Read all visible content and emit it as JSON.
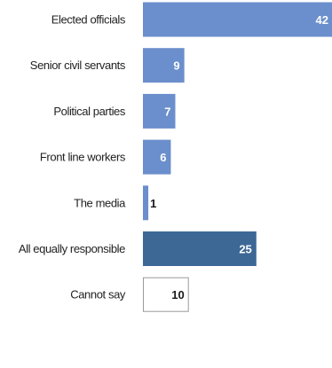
{
  "chart_data": {
    "type": "bar",
    "orientation": "horizontal",
    "title": "",
    "xlabel": "",
    "ylabel": "",
    "categories": [
      "Elected officials",
      "Senior civil servants",
      "Political parties",
      "Front line workers",
      "The media",
      "All equally responsible",
      "Cannot say"
    ],
    "values": [
      42,
      9,
      7,
      6,
      1,
      25,
      10
    ],
    "bar_colors": [
      "#6b8fcc",
      "#6b8fcc",
      "#6b8fcc",
      "#6b8fcc",
      "#6b8fcc",
      "#3d6896",
      "#ffffff"
    ],
    "bar_outline_colors": [
      "#6b8fcc",
      "#6b8fcc",
      "#6b8fcc",
      "#6b8fcc",
      "#6b8fcc",
      "#3d6896",
      "#9a9a9a"
    ],
    "value_label_colors": [
      "#ffffff",
      "#ffffff",
      "#ffffff",
      "#ffffff",
      "#1a1a1a",
      "#ffffff",
      "#1a1a1a"
    ],
    "xlim": [
      0,
      42
    ],
    "grid": false,
    "legend": "none"
  }
}
